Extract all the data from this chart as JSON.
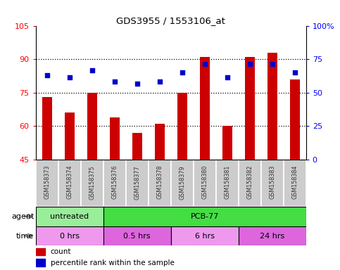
{
  "title": "GDS3955 / 1553106_at",
  "samples": [
    "GSM158373",
    "GSM158374",
    "GSM158375",
    "GSM158376",
    "GSM158377",
    "GSM158378",
    "GSM158379",
    "GSM158380",
    "GSM158381",
    "GSM158382",
    "GSM158383",
    "GSM158384"
  ],
  "count_values": [
    73,
    66,
    75,
    64,
    57,
    61,
    75,
    91,
    60,
    91,
    93,
    81
  ],
  "percentile_values": [
    83,
    82,
    85,
    80,
    79,
    80,
    84,
    88,
    82,
    88,
    88,
    84
  ],
  "ylim_left": [
    45,
    105
  ],
  "ylim_right": [
    0,
    100
  ],
  "yticks_left": [
    45,
    60,
    75,
    90,
    105
  ],
  "ytick_labels_left": [
    "45",
    "60",
    "75",
    "90",
    "105"
  ],
  "yticks_right": [
    0,
    25,
    50,
    75,
    100
  ],
  "ytick_labels_right": [
    "0",
    "25",
    "50",
    "75",
    "100%"
  ],
  "bar_color": "#cc0000",
  "dot_color": "#0000cc",
  "agent_row": [
    {
      "label": "untreated",
      "start": 0,
      "end": 3,
      "color": "#99ee99"
    },
    {
      "label": "PCB-77",
      "start": 3,
      "end": 12,
      "color": "#44dd44"
    }
  ],
  "time_row": [
    {
      "label": "0 hrs",
      "start": 0,
      "end": 3,
      "color": "#ee99ee"
    },
    {
      "label": "0.5 hrs",
      "start": 3,
      "end": 6,
      "color": "#dd66dd"
    },
    {
      "label": "6 hrs",
      "start": 6,
      "end": 9,
      "color": "#ee99ee"
    },
    {
      "label": "24 hrs",
      "start": 9,
      "end": 12,
      "color": "#dd66dd"
    }
  ],
  "legend_count_label": "count",
  "legend_percentile_label": "percentile rank within the sample",
  "xlabel_agent": "agent",
  "xlabel_time": "time"
}
